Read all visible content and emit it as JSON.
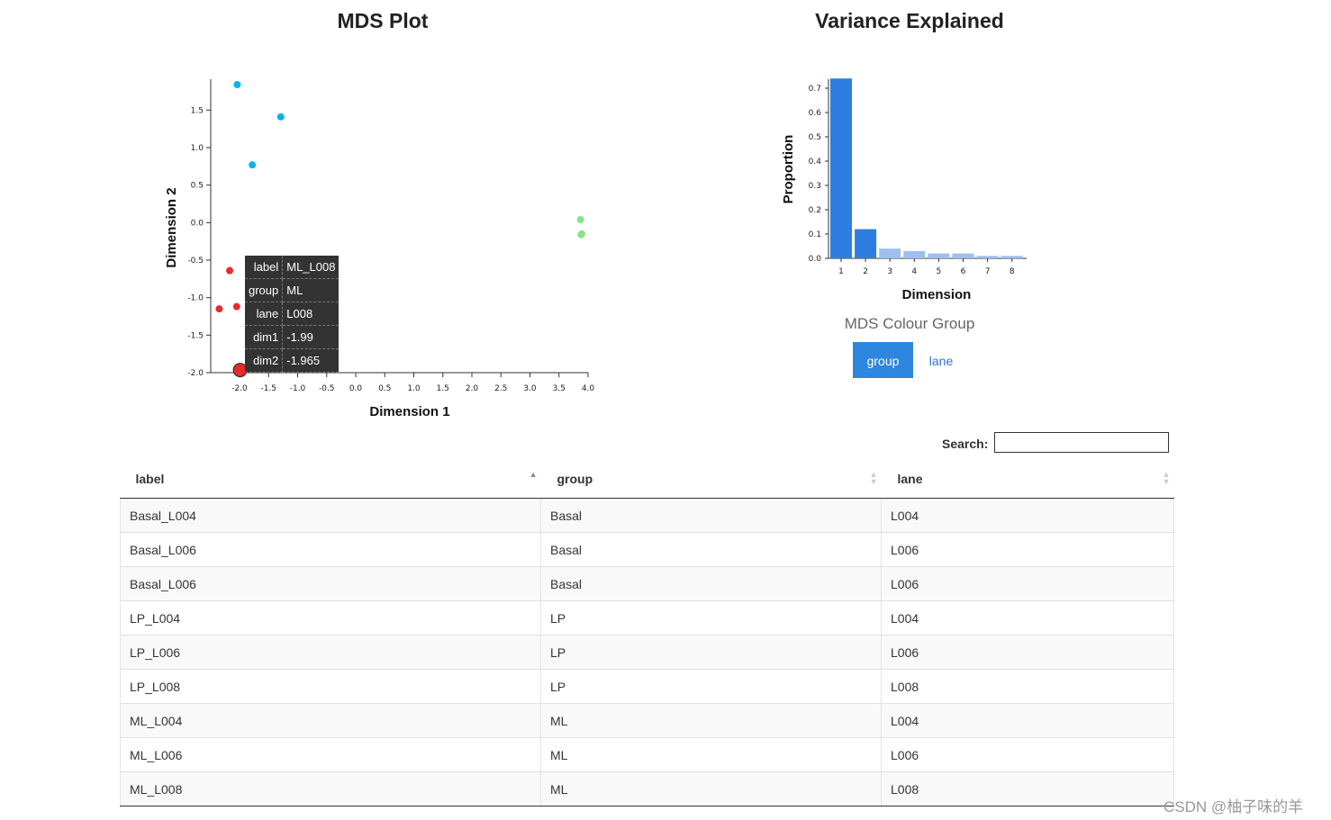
{
  "mds": {
    "title": "MDS Plot",
    "xlabel": "Dimension 1",
    "ylabel": "Dimension 2",
    "x_ticks": [
      "-2.0",
      "-1.5",
      "-1.0",
      "-0.5",
      "0.0",
      "0.5",
      "1.0",
      "1.5",
      "2.0",
      "2.5",
      "3.0",
      "3.5",
      "4.0"
    ],
    "y_ticks": [
      "1.5",
      "1.0",
      "0.5",
      "0.0",
      "-0.5",
      "-1.0",
      "-1.5",
      "-2.0"
    ],
    "points_color": {
      "Basal": "#e82a2a",
      "LP": "#00b3ee",
      "ML": "#84e584"
    },
    "tooltip": [
      {
        "key": "label",
        "value": "ML_L008"
      },
      {
        "key": "group",
        "value": "ML"
      },
      {
        "key": "lane",
        "value": "L008"
      },
      {
        "key": "dim1",
        "value": "-1.99"
      },
      {
        "key": "dim2",
        "value": "-1.965"
      }
    ]
  },
  "chart_data": [
    {
      "type": "scatter",
      "title": "MDS Plot",
      "xlabel": "Dimension 1",
      "ylabel": "Dimension 2",
      "xlim": [
        -2.45,
        4.0
      ],
      "ylim": [
        -2.05,
        1.9
      ],
      "series": [
        {
          "name": "Basal",
          "points": [
            [
              -2.35,
              -1.15
            ],
            [
              -2.17,
              -0.64
            ],
            [
              -2.05,
              -1.12
            ]
          ]
        },
        {
          "name": "LP",
          "points": [
            [
              -2.04,
              1.84
            ],
            [
              -1.78,
              0.77
            ],
            [
              -1.29,
              1.41
            ]
          ]
        },
        {
          "name": "ML",
          "points": [
            [
              3.87,
              0.04
            ],
            [
              3.89,
              -0.15
            ],
            [
              3.88,
              -0.16
            ]
          ]
        }
      ],
      "highlight": {
        "label": "ML_L008",
        "x": -1.99,
        "y": -1.965
      }
    },
    {
      "type": "bar",
      "title": "Variance Explained",
      "xlabel": "Dimension",
      "ylabel": "Proportion",
      "categories": [
        "1",
        "2",
        "3",
        "4",
        "5",
        "6",
        "7",
        "8"
      ],
      "values": [
        0.74,
        0.12,
        0.04,
        0.03,
        0.02,
        0.02,
        0.01,
        0.01
      ],
      "y_ticks": [
        "0.7",
        "0.6",
        "0.5",
        "0.4",
        "0.3",
        "0.2",
        "0.1",
        "0.0"
      ],
      "ylim": [
        0,
        0.74
      ]
    }
  ],
  "variance": {
    "title": "Variance Explained",
    "xlabel": "Dimension",
    "ylabel": "Proportion",
    "bar_dark": "#2e7de1",
    "bar_light": "#9dc0ee"
  },
  "colour_group": {
    "title": "MDS Colour Group",
    "options": [
      "group",
      "lane"
    ],
    "selected": "group"
  },
  "search": {
    "label": "Search:",
    "value": ""
  },
  "table": {
    "columns": [
      "label",
      "group",
      "lane"
    ],
    "rows": [
      [
        "Basal_L004",
        "Basal",
        "L004"
      ],
      [
        "Basal_L006",
        "Basal",
        "L006"
      ],
      [
        "Basal_L006",
        "Basal",
        "L006"
      ],
      [
        "LP_L004",
        "LP",
        "L004"
      ],
      [
        "LP_L006",
        "LP",
        "L006"
      ],
      [
        "LP_L008",
        "LP",
        "L008"
      ],
      [
        "ML_L004",
        "ML",
        "L004"
      ],
      [
        "ML_L006",
        "ML",
        "L006"
      ],
      [
        "ML_L008",
        "ML",
        "L008"
      ]
    ]
  },
  "watermark": "CSDN @柚子味的羊"
}
